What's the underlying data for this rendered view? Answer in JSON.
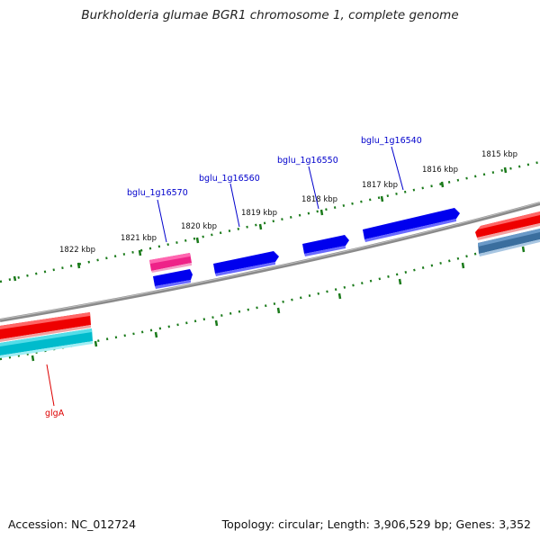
{
  "title": "Burkholderia glumae BGR1 chromosome 1, complete genome",
  "footer": {
    "accession": "Accession: NC_012724",
    "summary": "Topology: circular; Length: 3,906,529 bp; Genes: 3,352"
  },
  "ruler": {
    "labels": [
      "1822 kbp",
      "1821 kbp",
      "1820 kbp",
      "1819 kbp",
      "1818 kbp",
      "1817 kbp",
      "1816 kbp",
      "1815 kbp"
    ]
  },
  "genes": [
    {
      "name": "bglu_1g16570",
      "color": "#0000cc"
    },
    {
      "name": "bglu_1g16560",
      "color": "#0000cc"
    },
    {
      "name": "bglu_1g16550",
      "color": "#0000cc"
    },
    {
      "name": "bglu_1g16540",
      "color": "#0000cc"
    },
    {
      "name": "glgA",
      "color": "#dd0000"
    }
  ],
  "colors": {
    "backbone": "#8a8a8a",
    "tick": "#1a7a1a",
    "cds_forward": "#0000ee",
    "feature_red": "#ee0000",
    "feature_pink": "#ee2288",
    "feature_cyan": "#00bbcc",
    "feature_steel": "#3a6e9e"
  }
}
